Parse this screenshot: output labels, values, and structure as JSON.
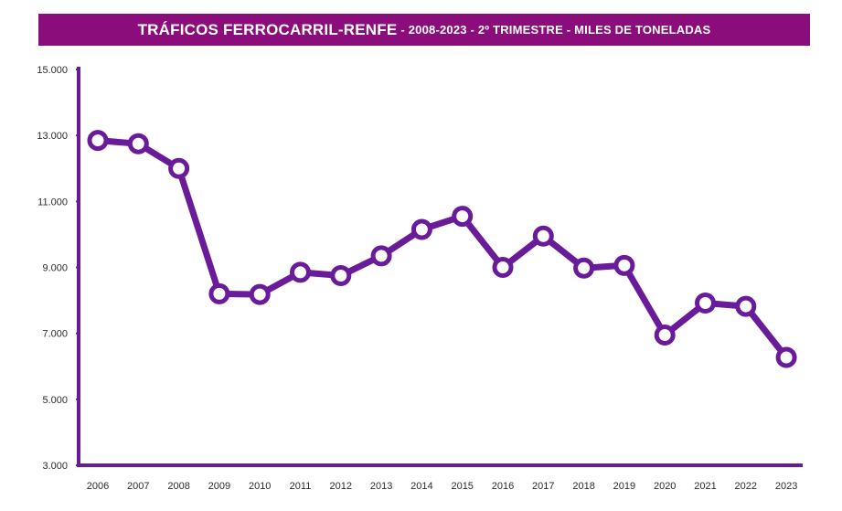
{
  "title": {
    "main": "TRÁFICOS FERROCARRIL-RENFE",
    "sub": "- 2008-2023 - 2º TRIMESTRE - MILES DE TONELADAS"
  },
  "colors": {
    "title_bg": "#8b0d7c",
    "line": "#6a1b9a",
    "axis": "#6a1b9a",
    "marker_fill": "#ffffff"
  },
  "chart_data": {
    "type": "line",
    "title": "TRÁFICOS FERROCARRIL-RENFE - 2008-2023 - 2º TRIMESTRE - MILES DE TONELADAS",
    "xlabel": "",
    "ylabel": "",
    "ylim": [
      3000,
      15000
    ],
    "yticks": [
      3000,
      5000,
      7000,
      9000,
      11000,
      13000,
      15000
    ],
    "ytick_labels": [
      "3.000",
      "5.000",
      "7.000",
      "9.000",
      "11.000",
      "13.000",
      "15.000"
    ],
    "categories": [
      "2006",
      "2007",
      "2008",
      "2009",
      "2010",
      "2011",
      "2012",
      "2013",
      "2014",
      "2015",
      "2016",
      "2017",
      "2018",
      "2019",
      "2020",
      "2021",
      "2022",
      "2023"
    ],
    "series": [
      {
        "name": "Tráficos Ferrocarril-Renfe",
        "values": [
          12850,
          12750,
          12000,
          8200,
          8180,
          8850,
          8750,
          9350,
          10150,
          10550,
          9000,
          9950,
          8980,
          9060,
          6950,
          7920,
          7820,
          6270
        ]
      }
    ]
  }
}
